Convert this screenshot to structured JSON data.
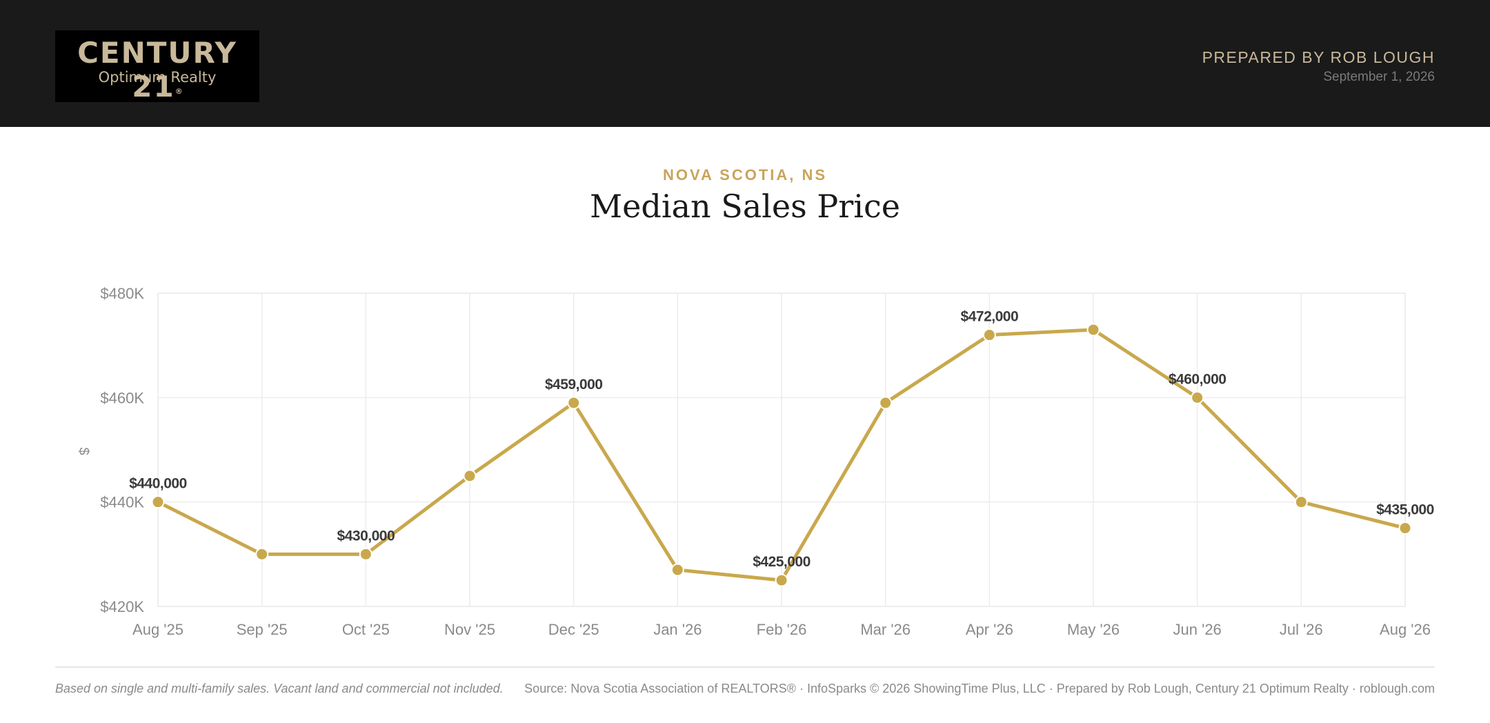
{
  "header": {
    "logo_main": "CENTURY 21",
    "logo_reg": "®",
    "logo_sub": "Optimum Realty",
    "prepared_by": "PREPARED BY ROB LOUGH",
    "date": "September 1, 2026"
  },
  "colors": {
    "accent": "#c9a84c",
    "header_bg": "#1a1a1a",
    "gold_text": "#c9b99a"
  },
  "chart_data": {
    "type": "line",
    "subtitle": "NOVA SCOTIA, NS",
    "title": "Median Sales Price",
    "ylabel": "$",
    "xlabel": "",
    "ylim": [
      420000,
      480000
    ],
    "yticks": [
      480000,
      460000,
      440000,
      420000
    ],
    "ytick_labels": [
      "$480K",
      "$460K",
      "$440K",
      "$420K"
    ],
    "categories": [
      "Aug '25",
      "Sep '25",
      "Oct '25",
      "Nov '25",
      "Dec '25",
      "Jan '26",
      "Feb '26",
      "Mar '26",
      "Apr '26",
      "May '26",
      "Jun '26",
      "Jul '26",
      "Aug '26"
    ],
    "values": [
      440000,
      430000,
      430000,
      445000,
      459000,
      427000,
      425000,
      459000,
      472000,
      473000,
      460000,
      440000,
      435000
    ],
    "data_labels": [
      {
        "index": 0,
        "text": "$440,000"
      },
      {
        "index": 2,
        "text": "$430,000"
      },
      {
        "index": 4,
        "text": "$459,000"
      },
      {
        "index": 6,
        "text": "$425,000"
      },
      {
        "index": 8,
        "text": "$472,000"
      },
      {
        "index": 10,
        "text": "$460,000"
      },
      {
        "index": 12,
        "text": "$435,000"
      }
    ],
    "grid": true
  },
  "footer": {
    "note": "Based on single and multi-family sales. Vacant land and commercial not included.",
    "source": "Source: Nova Scotia Association of REALTORS® · InfoSparks © 2026 ShowingTime Plus, LLC · Prepared by Rob Lough, Century 21 Optimum Realty · roblough.com"
  }
}
